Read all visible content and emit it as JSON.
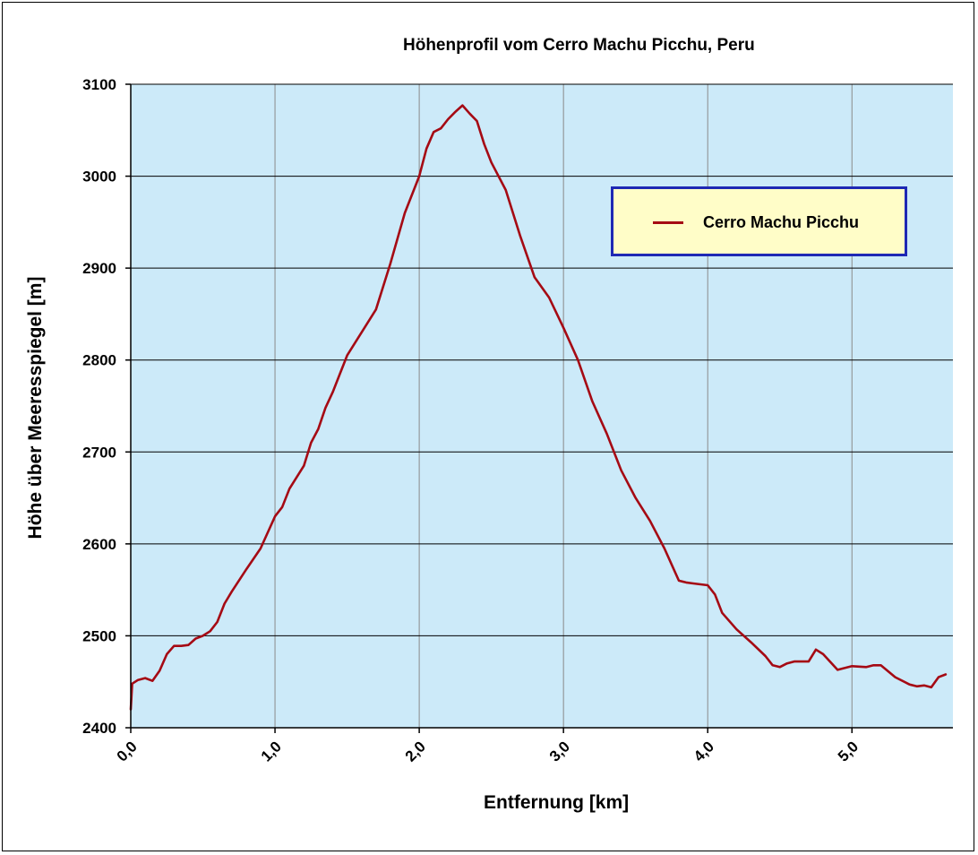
{
  "chart_data": {
    "type": "line",
    "title": "Höhenprofil vom Cerro Machu Picchu, Peru",
    "xlabel": "Entfernung [km]",
    "ylabel": "Höhe über Meeresspiegel [m]",
    "xlim": [
      0,
      5.7
    ],
    "ylim": [
      2400,
      3100
    ],
    "x_ticks": [
      0,
      1,
      2,
      3,
      4,
      5
    ],
    "x_tick_labels": [
      "0,0",
      "1,0",
      "2,0",
      "3,0",
      "4,0",
      "5,0"
    ],
    "y_ticks": [
      2400,
      2500,
      2600,
      2700,
      2800,
      2900,
      3000,
      3100
    ],
    "y_tick_labels": [
      "2400",
      "2500",
      "2600",
      "2700",
      "2800",
      "2900",
      "3000",
      "3100"
    ],
    "grid": true,
    "legend_position": "top-right",
    "background_color": "#cceaf9",
    "series": [
      {
        "name": "Cerro Machu Picchu",
        "color": "#a50a14",
        "x": [
          0.0,
          0.01,
          0.05,
          0.1,
          0.15,
          0.2,
          0.25,
          0.3,
          0.35,
          0.4,
          0.45,
          0.5,
          0.55,
          0.6,
          0.65,
          0.7,
          0.8,
          0.9,
          1.0,
          1.05,
          1.1,
          1.2,
          1.25,
          1.3,
          1.35,
          1.4,
          1.5,
          1.6,
          1.7,
          1.8,
          1.9,
          2.0,
          2.05,
          2.1,
          2.15,
          2.2,
          2.25,
          2.3,
          2.35,
          2.4,
          2.45,
          2.5,
          2.6,
          2.7,
          2.8,
          2.9,
          3.0,
          3.1,
          3.2,
          3.3,
          3.4,
          3.5,
          3.6,
          3.7,
          3.8,
          3.85,
          3.9,
          4.0,
          4.05,
          4.1,
          4.2,
          4.3,
          4.4,
          4.45,
          4.5,
          4.55,
          4.6,
          4.7,
          4.75,
          4.8,
          4.9,
          5.0,
          5.1,
          5.15,
          5.2,
          5.3,
          5.4,
          5.45,
          5.5,
          5.55,
          5.6,
          5.65
        ],
        "y": [
          2420,
          2448,
          2452,
          2454,
          2451,
          2462,
          2480,
          2489,
          2489,
          2490,
          2497,
          2500,
          2505,
          2515,
          2535,
          2548,
          2572,
          2595,
          2630,
          2640,
          2660,
          2685,
          2710,
          2725,
          2748,
          2765,
          2805,
          2830,
          2855,
          2905,
          2960,
          3000,
          3030,
          3048,
          3052,
          3062,
          3070,
          3077,
          3068,
          3060,
          3035,
          3015,
          2985,
          2935,
          2890,
          2868,
          2835,
          2800,
          2755,
          2720,
          2680,
          2650,
          2625,
          2595,
          2560,
          2558,
          2557,
          2555,
          2545,
          2525,
          2507,
          2493,
          2478,
          2468,
          2466,
          2470,
          2472,
          2472,
          2485,
          2480,
          2463,
          2467,
          2466,
          2468,
          2468,
          2455,
          2447,
          2445,
          2446,
          2444,
          2455,
          2458
        ]
      }
    ]
  }
}
